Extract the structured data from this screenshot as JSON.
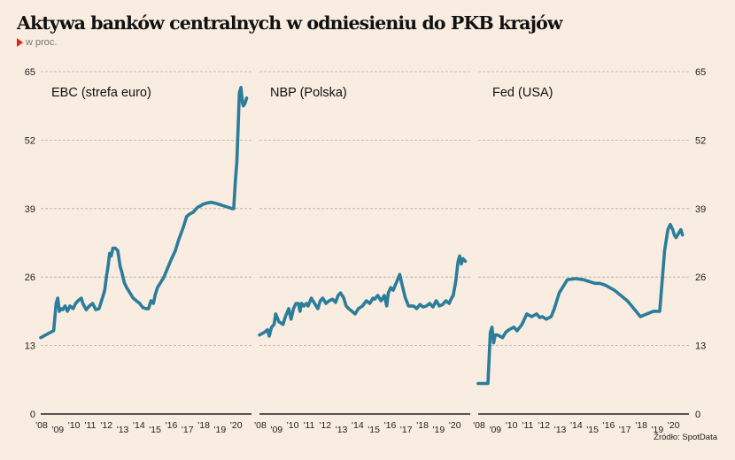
{
  "title": "Aktywa banków centralnych w odniesieniu do PKB krajów",
  "subtitle": "w proc.",
  "source": "Źródło: SpotData",
  "colors": {
    "line": "#2b7d9b",
    "grid": "#b9ada3",
    "axis": "#222222",
    "accent": "#e2231a",
    "background": "#f9ece0"
  },
  "chart_data": [
    {
      "type": "line",
      "title": "EBC (strefa euro)",
      "xlabel": "",
      "ylabel": "w proc.",
      "ylim": [
        0,
        65
      ],
      "yticks": [
        0,
        13,
        26,
        39,
        52,
        65
      ],
      "ytick_side": "left",
      "xlim": [
        2008,
        2021
      ],
      "xtick_labels": [
        "'08",
        "'09",
        "'10",
        "'11",
        "'12",
        "'13",
        "'14",
        "'15",
        "'16",
        "'17",
        "'18",
        "'19",
        "'20"
      ],
      "grid": true,
      "x": [
        2008.0,
        2008.3,
        2008.6,
        2008.8,
        2008.95,
        2009.05,
        2009.15,
        2009.25,
        2009.35,
        2009.5,
        2009.65,
        2009.8,
        2010.0,
        2010.15,
        2010.3,
        2010.5,
        2010.6,
        2010.8,
        2011.0,
        2011.2,
        2011.4,
        2011.6,
        2011.8,
        2011.95,
        2012.05,
        2012.15,
        2012.25,
        2012.35,
        2012.45,
        2012.6,
        2012.75,
        2012.9,
        2013.0,
        2013.15,
        2013.3,
        2013.5,
        2013.7,
        2013.9,
        2014.1,
        2014.3,
        2014.5,
        2014.65,
        2014.8,
        2014.95,
        2015.05,
        2015.2,
        2015.4,
        2015.6,
        2015.8,
        2016.0,
        2016.3,
        2016.5,
        2016.8,
        2017.0,
        2017.2,
        2017.4,
        2017.6,
        2017.7,
        2017.85,
        2018.0,
        2018.2,
        2018.5,
        2018.8,
        2019.0,
        2019.3,
        2019.6,
        2019.8,
        2019.9,
        2020.0,
        2020.1,
        2020.15,
        2020.25,
        2020.35,
        2020.45,
        2020.5,
        2020.6,
        2020.7
      ],
      "values": [
        14.5,
        15,
        15.5,
        15.8,
        21,
        22,
        19.5,
        20,
        19.8,
        20.5,
        19.5,
        20.5,
        20,
        21,
        21.5,
        22,
        21,
        19.8,
        20.5,
        21,
        19.8,
        20,
        22,
        23.5,
        26,
        28,
        30.5,
        30,
        31.5,
        31.5,
        31,
        28,
        27,
        25,
        24,
        23,
        22,
        21.5,
        21,
        20.2,
        20,
        20,
        21.5,
        21,
        22.5,
        24,
        25,
        26,
        27.5,
        29,
        31,
        33,
        35.5,
        37.5,
        38,
        38.3,
        39,
        39.3,
        39.5,
        39.8,
        40,
        40.2,
        40,
        39.8,
        39.5,
        39.2,
        39,
        39,
        44,
        48,
        52,
        61,
        62,
        59,
        58.5,
        59,
        60
      ]
    },
    {
      "type": "line",
      "title": "NBP (Polska)",
      "xlabel": "",
      "ylabel": "w proc.",
      "ylim": [
        0,
        65
      ],
      "yticks": [
        0,
        13,
        26,
        39,
        52,
        65
      ],
      "xlim": [
        2008,
        2021
      ],
      "xtick_labels": [
        "'08",
        "'09",
        "'10",
        "'11",
        "'12",
        "'13",
        "'14",
        "'15",
        "'16",
        "'17",
        "'18",
        "'19",
        "'20"
      ],
      "grid": true,
      "x": [
        2008.0,
        2008.3,
        2008.5,
        2008.6,
        2008.75,
        2008.9,
        2009.0,
        2009.2,
        2009.45,
        2009.6,
        2009.8,
        2009.95,
        2010.1,
        2010.25,
        2010.4,
        2010.5,
        2010.6,
        2010.75,
        2010.9,
        2011.0,
        2011.2,
        2011.4,
        2011.6,
        2011.75,
        2011.9,
        2012.1,
        2012.3,
        2012.5,
        2012.7,
        2012.85,
        2013.0,
        2013.2,
        2013.35,
        2013.5,
        2013.7,
        2013.9,
        2014.1,
        2014.35,
        2014.6,
        2014.8,
        2015.0,
        2015.1,
        2015.3,
        2015.5,
        2015.7,
        2015.85,
        2015.95,
        2016.1,
        2016.25,
        2016.45,
        2016.65,
        2016.8,
        2017.0,
        2017.2,
        2017.5,
        2017.7,
        2017.9,
        2018.1,
        2018.3,
        2018.5,
        2018.7,
        2018.9,
        2019.1,
        2019.3,
        2019.5,
        2019.7,
        2019.85,
        2019.95,
        2020.1,
        2020.25,
        2020.35,
        2020.45,
        2020.55,
        2020.7
      ],
      "values": [
        15,
        15.5,
        16,
        14.8,
        16.5,
        17,
        19,
        17.5,
        17,
        18.5,
        20,
        18,
        20,
        21,
        21,
        19.5,
        21,
        20.5,
        21,
        20.5,
        22,
        21,
        20,
        21.5,
        22,
        21,
        21.5,
        21.8,
        21.2,
        22.5,
        23,
        22,
        20.5,
        20,
        19.5,
        19,
        20,
        20.5,
        21.5,
        21,
        22,
        21.8,
        22.5,
        21.5,
        22.5,
        20.5,
        23,
        24,
        23.5,
        25,
        26.5,
        24.5,
        22,
        20.5,
        20.5,
        20,
        20.8,
        20.3,
        20.5,
        21,
        20.3,
        21.5,
        20.5,
        20.8,
        21.5,
        21,
        22,
        22.5,
        25,
        29,
        30,
        28.5,
        29.5,
        29
      ]
    },
    {
      "type": "line",
      "title": "Fed (USA)",
      "xlabel": "",
      "ylabel": "w proc.",
      "ylim": [
        0,
        65
      ],
      "yticks": [
        0,
        13,
        26,
        39,
        52,
        65
      ],
      "ytick_side": "right",
      "xlim": [
        2008,
        2021
      ],
      "xtick_labels": [
        "'08",
        "'09",
        "'10",
        "'11",
        "'12",
        "'13",
        "'14",
        "'15",
        "'16",
        "'17",
        "'18",
        "'19",
        "'20"
      ],
      "grid": true,
      "x": [
        2008.0,
        2008.4,
        2008.6,
        2008.75,
        2008.85,
        2008.95,
        2009.05,
        2009.2,
        2009.5,
        2009.7,
        2009.9,
        2010.2,
        2010.4,
        2010.7,
        2011.0,
        2011.3,
        2011.6,
        2011.8,
        2011.95,
        2012.2,
        2012.5,
        2012.7,
        2013.0,
        2013.5,
        2014.0,
        2014.5,
        2014.8,
        2015.2,
        2015.5,
        2015.8,
        2016.0,
        2016.4,
        2016.8,
        2017.2,
        2017.6,
        2018.0,
        2018.4,
        2018.8,
        2019.2,
        2019.5,
        2019.7,
        2019.85,
        2020.0,
        2020.1,
        2020.2,
        2020.3,
        2020.4,
        2020.5,
        2020.6
      ],
      "values": [
        5.8,
        5.8,
        5.8,
        15.5,
        16.5,
        13.5,
        15,
        15,
        14.5,
        15.5,
        16,
        16.5,
        15.8,
        17,
        19,
        18.5,
        19,
        18.3,
        18.5,
        18,
        18.5,
        20,
        23,
        25.5,
        25.7,
        25.5,
        25.2,
        24.8,
        24.8,
        24.5,
        24.2,
        23.5,
        22.5,
        21.5,
        20,
        18.5,
        19,
        19.5,
        19.5,
        31,
        35,
        36,
        35,
        34,
        33.5,
        34,
        34.5,
        35,
        34
      ]
    }
  ]
}
